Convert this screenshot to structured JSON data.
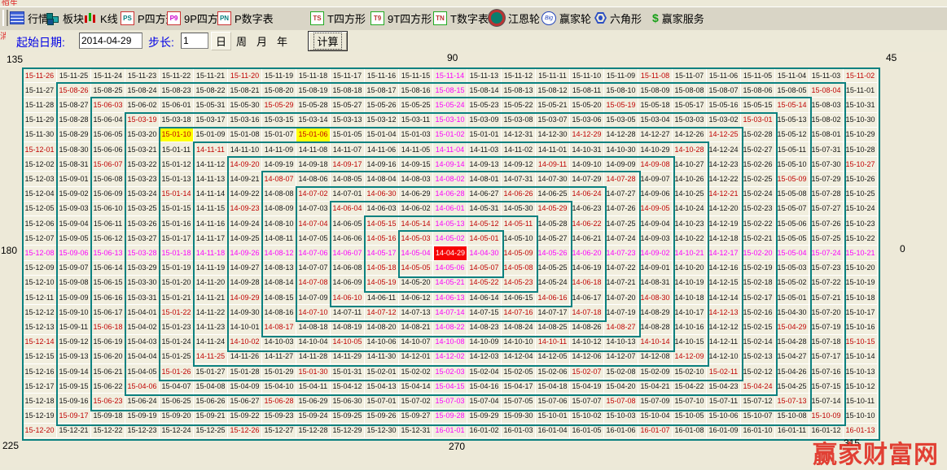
{
  "toolbar": {
    "items": [
      {
        "label": "行情",
        "icon": "market-table-icon"
      },
      {
        "label": "板块",
        "icon": "sector-blocks-icon"
      },
      {
        "label": "K线",
        "icon": "candlestick-icon"
      },
      {
        "label": "P四方形",
        "icon": "badge-PS",
        "badge": "PS"
      },
      {
        "label": "9P四方形",
        "icon": "badge-P9",
        "badge": "P9"
      },
      {
        "label": "P数字表",
        "icon": "badge-PN",
        "badge": "PN"
      },
      {
        "label": "T四方形",
        "icon": "badge-TS",
        "badge": "TS"
      },
      {
        "label": "9T四方形",
        "icon": "badge-T9",
        "badge": "T9"
      },
      {
        "label": "T数字表",
        "icon": "badge-TN",
        "badge": "TN"
      },
      {
        "label": "江恩轮",
        "icon": "gann-wheel-icon"
      },
      {
        "label": "赢家轮",
        "icon": "winner-wheel-icon",
        "badge": "Big"
      },
      {
        "label": "六角形",
        "icon": "hexagon-icon"
      },
      {
        "label": "赢家服务",
        "icon": "dollar-icon"
      }
    ]
  },
  "controls": {
    "start_label": "起始日期:",
    "start_value": "2014-04-29",
    "step_label": "步长:",
    "step_value": "1",
    "units": [
      "日",
      "周",
      "月",
      "年"
    ],
    "selected_unit": "日",
    "calc_button": "计算"
  },
  "angles": [
    "135",
    "90",
    "45",
    "180",
    "0",
    "225",
    "270",
    "315"
  ],
  "gann_table": {
    "type": "gann_square_of_nine_date_table",
    "start_date": "2014-04-29",
    "step_days": 1,
    "cols": 25,
    "rows": 25,
    "date_format": "YY-MM-DD",
    "spiral": "counterclockwise from center, first step east, then up around each ring",
    "center_date_label": "14-04-29",
    "corner_dates": {
      "top_left": "15-11-26",
      "top_right": "15-11-02",
      "bottom_left": "15-12-20",
      "bottom_right": "16-01-13"
    },
    "ring_boxes": "teal rectangles drawn around every ring 1-12",
    "red_dates": [
      "14-05-01",
      "14-05-03",
      "14-05-05",
      "14-05-07",
      "14-05-08",
      "14-05-09",
      "14-05-11",
      "14-05-12",
      "14-05-14",
      "14-05-15",
      "14-05-16",
      "14-05-18",
      "14-05-19",
      "14-05-22",
      "14-05-23",
      "14-05-29",
      "14-06-04",
      "14-06-10",
      "14-06-16",
      "14-06-18",
      "14-06-22",
      "14-06-24",
      "14-06-26",
      "14-06-30",
      "14-07-02",
      "14-07-04",
      "14-07-08",
      "14-07-10",
      "14-07-12",
      "14-07-16",
      "14-07-18",
      "14-07-28",
      "14-08-07",
      "14-08-17",
      "14-08-27",
      "14-08-30",
      "14-09-05",
      "14-09-08",
      "14-09-11",
      "14-09-17",
      "14-09-20",
      "14-09-23",
      "14-09-29",
      "14-10-02",
      "14-10-05",
      "14-10-11",
      "14-10-14",
      "14-10-28",
      "14-11-11",
      "14-11-25",
      "14-12-09",
      "14-12-13",
      "14-12-21",
      "14-12-25",
      "14-12-29",
      "15-01-06",
      "15-01-10",
      "15-01-14",
      "15-01-22",
      "15-01-26",
      "15-01-30",
      "15-02-07",
      "15-02-11",
      "15-03-01",
      "15-03-19",
      "15-04-06",
      "15-04-24",
      "15-04-29",
      "15-05-09",
      "15-05-14",
      "15-05-19",
      "15-05-29",
      "15-06-03",
      "15-06-07",
      "15-06-18",
      "15-06-23",
      "15-06-28",
      "15-07-08",
      "15-07-13",
      "15-08-04",
      "15-08-26",
      "15-09-17",
      "15-10-09",
      "15-10-15",
      "15-10-27",
      "15-11-02",
      "15-11-08",
      "15-11-20",
      "15-11-26",
      "15-12-01",
      "15-12-14",
      "15-12-20",
      "15-12-26",
      "16-01-07",
      "16-01-13"
    ],
    "magenta_dates": [
      "14-05-02",
      "14-05-13",
      "14-06-01",
      "14-06-28",
      "14-08-02",
      "14-09-14",
      "14-11-04",
      "15-01-02",
      "15-03-10",
      "15-05-24",
      "15-08-15",
      "15-11-14",
      "14-04-30",
      "14-05-26",
      "14-06-20",
      "14-07-23",
      "14-09-02",
      "14-10-21",
      "14-12-17",
      "15-02-20",
      "15-05-04",
      "15-07-24",
      "15-10-21",
      "14-05-06",
      "14-05-21",
      "14-06-13",
      "14-07-14",
      "14-08-22",
      "14-10-08",
      "14-12-02",
      "15-02-03",
      "15-04-15",
      "15-07-03",
      "15-09-28",
      "16-01-01",
      "14-05-04",
      "14-05-17",
      "14-06-07",
      "14-07-06",
      "14-08-12",
      "14-09-26",
      "14-11-18",
      "15-01-18",
      "15-03-28",
      "15-06-13",
      "15-09-06",
      "15-12-08"
    ],
    "yellow_dates": [
      "15-01-10",
      "15-01-06"
    ]
  },
  "watermark": {
    "text": "赢家财富网"
  }
}
